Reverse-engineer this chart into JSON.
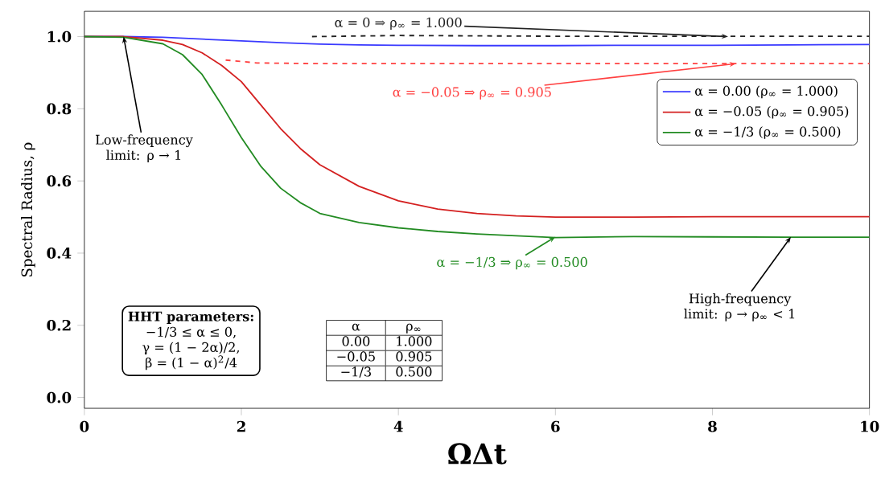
{
  "chart_data": {
    "type": "line",
    "xlabel": "ΩΔt",
    "ylabel": "Spectral Radius, ρ",
    "xlim": [
      0,
      10
    ],
    "ylim": [
      -0.03,
      1.07
    ],
    "xticks": [
      0,
      2,
      4,
      6,
      8,
      10
    ],
    "yticks": [
      {
        "value": 0,
        "label": "0.0"
      },
      {
        "value": 0.2,
        "label": "0.2"
      },
      {
        "value": 0.4,
        "label": "0.4"
      },
      {
        "value": 0.6,
        "label": "0.6"
      },
      {
        "value": 0.8,
        "label": "0.8"
      },
      {
        "value": 1.0,
        "label": "1.0"
      }
    ],
    "legend": "right",
    "series": [
      {
        "name": "α = 0.00 (ρ$_{∞}$ = 1.000)",
        "color": "#3a3aff",
        "x": [
          0,
          0.5,
          1,
          1.5,
          2,
          2.5,
          3,
          3.5,
          4,
          5,
          6,
          7,
          8,
          9,
          10
        ],
        "values": [
          1.0,
          1.0,
          0.998,
          0.993,
          0.988,
          0.983,
          0.979,
          0.977,
          0.976,
          0.975,
          0.975,
          0.976,
          0.976,
          0.977,
          0.978
        ]
      },
      {
        "name": "α = −0.05 (ρ$_{∞}$ = 0.905)",
        "color": "#d42020",
        "x": [
          0,
          0.5,
          1,
          1.25,
          1.5,
          1.75,
          2,
          2.25,
          2.5,
          2.75,
          3,
          3.5,
          4,
          4.5,
          5,
          5.5,
          6,
          7,
          8,
          9,
          10
        ],
        "values": [
          1.0,
          1.0,
          0.99,
          0.978,
          0.955,
          0.92,
          0.875,
          0.81,
          0.745,
          0.69,
          0.645,
          0.585,
          0.545,
          0.522,
          0.51,
          0.503,
          0.5,
          0.5,
          0.501,
          0.501,
          0.501
        ]
      },
      {
        "name": "α = −1/3 (ρ$_{∞}$ = 0.500)",
        "color": "#228b22",
        "x": [
          0,
          0.5,
          1,
          1.25,
          1.5,
          1.75,
          2,
          2.25,
          2.5,
          2.75,
          3,
          3.5,
          4,
          4.5,
          5,
          5.5,
          6,
          7,
          8,
          9,
          10
        ],
        "values": [
          1.0,
          0.998,
          0.98,
          0.95,
          0.895,
          0.81,
          0.72,
          0.64,
          0.58,
          0.54,
          0.51,
          0.485,
          0.47,
          0.46,
          0.453,
          0.448,
          0.443,
          0.446,
          0.445,
          0.444,
          0.444
        ]
      },
      {
        "color": "#222222",
        "line_style": "dashed",
        "x": [
          2.9,
          4,
          5,
          6,
          8,
          10
        ],
        "values": [
          1.0,
          1.003,
          1.002,
          1.001,
          1.001,
          1.001
        ]
      },
      {
        "color": "#ff4040",
        "line_style": "dashed",
        "x": [
          1.8,
          2.2,
          3,
          5,
          8,
          10
        ],
        "values": [
          0.935,
          0.927,
          0.925,
          0.925,
          0.925,
          0.925
        ]
      }
    ],
    "annotations": [
      {
        "text": "α = 0 ⇒ ρ$_{∞}$ = 1.000",
        "x": 8.2,
        "y": 1.0
      },
      {
        "text": "α = −0.05 ⇒ ρ$_{∞}$ = 0.905",
        "x": 8.3,
        "y": 0.925
      },
      {
        "text": "α = −1/3 ⇒ ρ$_{∞}$ = 0.500",
        "x": 6,
        "y": 0.445
      },
      {
        "text": "Low-frequency limit: ρ → 1",
        "x": 0.5,
        "y": 1.0
      },
      {
        "text": "High-frequency limit: ρ → ρ$_{∞}$ < 1",
        "x": 9,
        "y": 0.445
      },
      "HHT parameters:",
      "−1/3 ≤ α ≤ 0,",
      "γ = (1 − 2α)/2,",
      "β = (1 − α)$^{2}$/4",
      "α",
      "ρ$_{∞}$",
      "0.00",
      "1.000",
      "−0.05",
      "0.905",
      "−1/3",
      "0.500"
    ]
  }
}
